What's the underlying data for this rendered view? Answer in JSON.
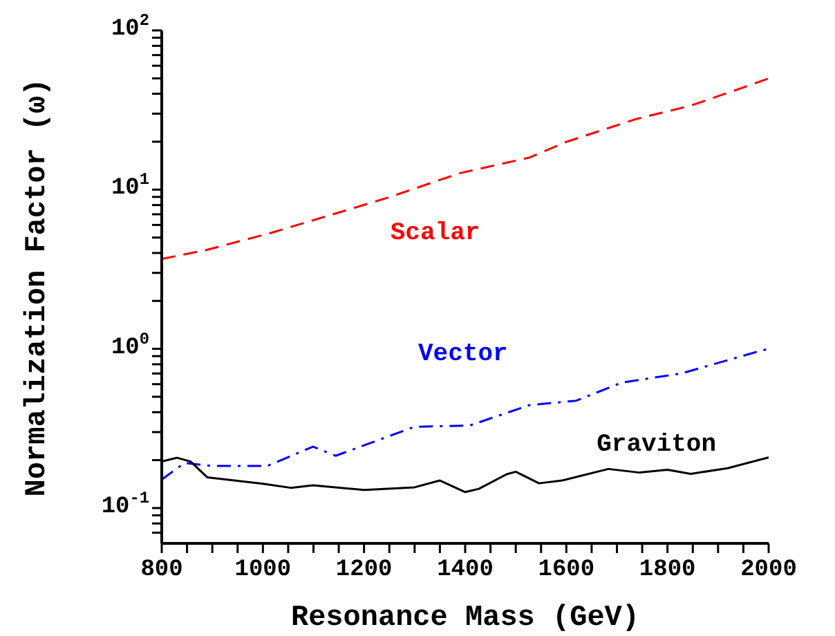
{
  "chart_data": {
    "type": "line",
    "xlabel": "Resonance Mass (GeV)",
    "ylabel": "Normalization Factor (ω)",
    "log": "y",
    "xlim": [
      800,
      2000
    ],
    "xticks": [
      800,
      {
        "value": 850,
        "label": null
      },
      {
        "value": 900,
        "label": null
      },
      {
        "value": 950,
        "label": null
      },
      1000,
      {
        "value": 1050,
        "label": null
      },
      {
        "value": 1100,
        "label": null
      },
      {
        "value": 1150,
        "label": null
      },
      1200,
      {
        "value": 1250,
        "label": null
      },
      {
        "value": 1300,
        "label": null
      },
      {
        "value": 1350,
        "label": null
      },
      1400,
      {
        "value": 1450,
        "label": null
      },
      {
        "value": 1500,
        "label": null
      },
      {
        "value": 1550,
        "label": null
      },
      1600,
      {
        "value": 1650,
        "label": null
      },
      {
        "value": 1700,
        "label": null
      },
      {
        "value": 1750,
        "label": null
      },
      1800,
      {
        "value": 1850,
        "label": null
      },
      {
        "value": 1900,
        "label": null
      },
      {
        "value": 1950,
        "label": null
      },
      2000
    ],
    "ylim": [
      0.06,
      100
    ],
    "yticks": [
      {
        "value": 0.07,
        "label": null
      },
      {
        "value": 0.08,
        "label": null
      },
      {
        "value": 0.09,
        "label": null
      },
      {
        "value": 0.1,
        "label": "10$^{-1}$"
      },
      {
        "value": 0.2,
        "label": null
      },
      {
        "value": 0.3,
        "label": null
      },
      {
        "value": 0.4,
        "label": null
      },
      {
        "value": 0.5,
        "label": null
      },
      {
        "value": 0.6,
        "label": null
      },
      {
        "value": 0.7,
        "label": null
      },
      {
        "value": 0.8,
        "label": null
      },
      {
        "value": 0.9,
        "label": null
      },
      {
        "value": 1,
        "label": "10$^{0}$"
      },
      {
        "value": 2,
        "label": null
      },
      {
        "value": 3,
        "label": null
      },
      {
        "value": 4,
        "label": null
      },
      {
        "value": 5,
        "label": null
      },
      {
        "value": 6,
        "label": null
      },
      {
        "value": 7,
        "label": null
      },
      {
        "value": 8,
        "label": null
      },
      {
        "value": 9,
        "label": null
      },
      {
        "value": 10,
        "label": "10$^{1}$"
      },
      {
        "value": 20,
        "label": null
      },
      {
        "value": 30,
        "label": null
      },
      {
        "value": 40,
        "label": null
      },
      {
        "value": 50,
        "label": null
      },
      {
        "value": 60,
        "label": null
      },
      {
        "value": 70,
        "label": null
      },
      {
        "value": 80,
        "label": null
      },
      {
        "value": 90,
        "label": null
      },
      {
        "value": 100,
        "label": "10$^{2}$"
      }
    ],
    "grid": false,
    "legend": false,
    "marker": "none",
    "series": [
      {
        "name": "Scalar",
        "color": "#ff0000",
        "line_style": "dashed",
        "x": [
          800,
          890,
          1018,
          1172,
          1245,
          1390,
          1527,
          1601,
          1737,
          1846,
          1937,
          2000
        ],
        "values": [
          3.67,
          4.19,
          5.37,
          7.54,
          8.86,
          12.7,
          15.9,
          20.0,
          27.7,
          33.7,
          42.4,
          49.9
        ]
      },
      {
        "name": "Vector",
        "color": "#0000ff",
        "line_style": "dashdot",
        "x": [
          800,
          845,
          899,
          1009,
          1099,
          1144,
          1300,
          1409,
          1527,
          1619,
          1710,
          1827,
          1983,
          2000
        ],
        "values": [
          0.151,
          0.192,
          0.184,
          0.184,
          0.243,
          0.213,
          0.324,
          0.33,
          0.443,
          0.472,
          0.614,
          0.7,
          0.97,
          1.0
        ]
      },
      {
        "name": "Graviton",
        "color": "#000000",
        "line_style": "solid",
        "x": [
          800,
          830,
          857,
          890,
          1000,
          1055,
          1099,
          1200,
          1300,
          1350,
          1400,
          1427,
          1482,
          1500,
          1546,
          1592,
          1683,
          1745,
          1800,
          1846,
          1919,
          2000
        ],
        "values": [
          0.196,
          0.207,
          0.196,
          0.156,
          0.142,
          0.134,
          0.139,
          0.13,
          0.135,
          0.149,
          0.126,
          0.132,
          0.163,
          0.169,
          0.143,
          0.149,
          0.176,
          0.167,
          0.174,
          0.164,
          0.178,
          0.208
        ]
      }
    ]
  }
}
